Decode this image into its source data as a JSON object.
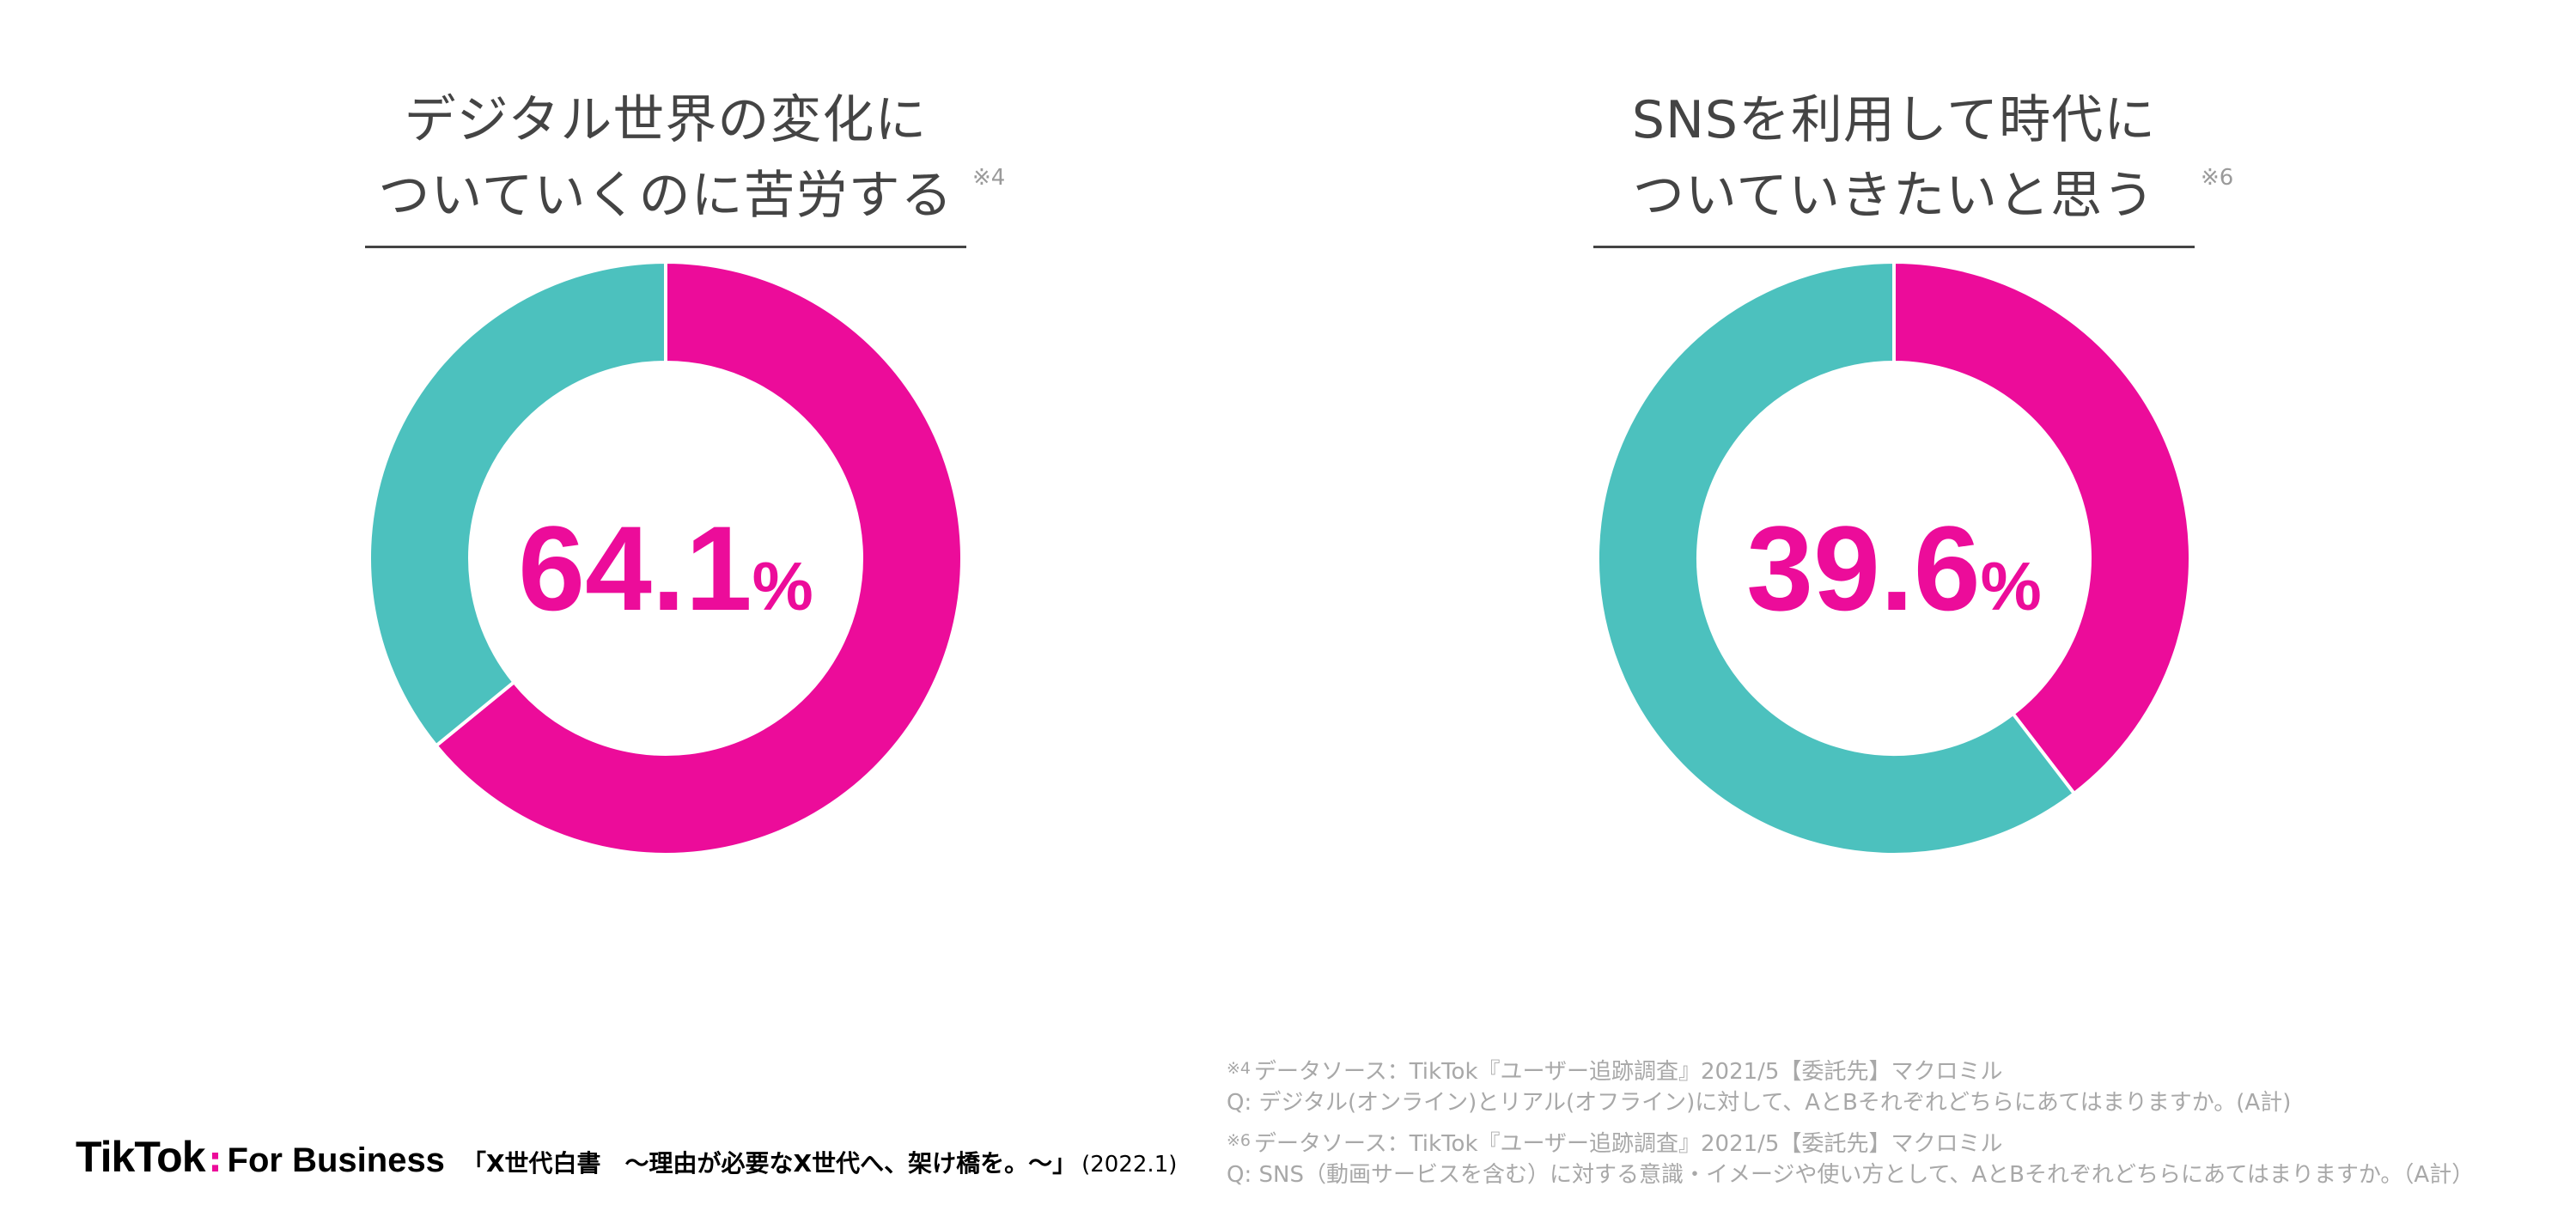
{
  "colors": {
    "primary": "#ec0c9a",
    "secondary": "#4cc1be",
    "text": "#444444",
    "muted": "#a8a8a8"
  },
  "chart_data": [
    {
      "type": "pie",
      "title_lines": [
        "デジタル世界の変化に",
        "ついていくのに苦労する"
      ],
      "note_ref": "※4",
      "center_value": "64.1",
      "center_unit": "%",
      "slices": [
        {
          "value": 64.1,
          "color": "#ec0c9a"
        },
        {
          "value": 35.9,
          "color": "#4cc1be"
        }
      ]
    },
    {
      "type": "pie",
      "title_lines": [
        "SNSを利用して時代に",
        "ついていきたいと思う"
      ],
      "note_ref": "※6",
      "center_value": "39.6",
      "center_unit": "%",
      "slices": [
        {
          "value": 39.6,
          "color": "#ec0c9a"
        },
        {
          "value": 60.4,
          "color": "#4cc1be"
        }
      ]
    }
  ],
  "footer": {
    "brand_tiktok": "TikTok",
    "brand_separator": ":",
    "brand_for_business": "For Business",
    "report_title": "「X世代白書　～理由が必要なX世代へ、架け橋を。～」",
    "report_date": "(2022.1)"
  },
  "footnotes": [
    {
      "mark": "※4",
      "source": "データソース：TikTok『ユーザー追跡調査』2021/5【委託先】マクロミル",
      "question": "Q: デジタル(オンライン)とリアル(オフライン)に対して、AとBそれぞれどちらにあてはまりますか。(A計)"
    },
    {
      "mark": "※6",
      "source": "データソース：TikTok『ユーザー追跡調査』2021/5【委託先】マクロミル",
      "question": "Q: SNS（動画サービスを含む）に対する意識・イメージや使い方として、AとBそれぞれどちらにあてはまりますか。（A計）"
    }
  ]
}
